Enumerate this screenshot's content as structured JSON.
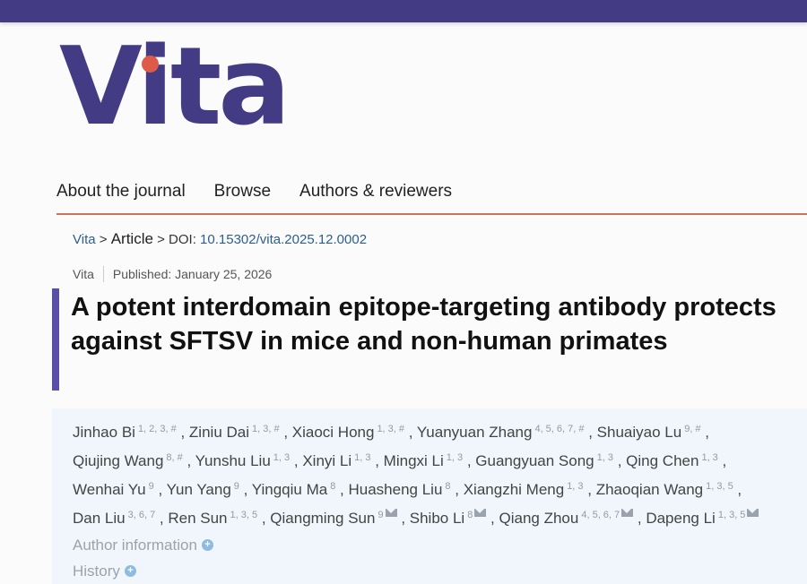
{
  "logo": "Vita",
  "nav": [
    "About the journal",
    "Browse",
    "Authors & reviewers"
  ],
  "breadcrumb": {
    "home": "Vita",
    "sep": ">",
    "article": "Article",
    "doi_label": "DOI:",
    "doi": "10.15302/vita.2025.12.0002"
  },
  "meta": {
    "journal": "Vita",
    "published": "Published: January 25, 2026"
  },
  "title": "A potent interdomain epitope-targeting antibody protects against SFTSV in mice and non-human primates",
  "authors": [
    [
      {
        "n": "Jinhao Bi",
        "s": "1, 2, 3, #"
      },
      {
        "n": "Ziniu Dai",
        "s": "1, 3, #"
      },
      {
        "n": "Xiaoci Hong",
        "s": "1, 3, #"
      },
      {
        "n": "Yuanyuan Zhang",
        "s": "4, 5, 6, 7, #"
      },
      {
        "n": "Shuaiyao Lu",
        "s": "9, #"
      }
    ],
    [
      {
        "n": "Qiujing Wang",
        "s": "8, #"
      },
      {
        "n": "Yunshu Liu",
        "s": "1, 3"
      },
      {
        "n": "Xinyi Li",
        "s": "1, 3"
      },
      {
        "n": "Mingxi Li",
        "s": "1, 3"
      },
      {
        "n": "Guangyuan Song",
        "s": "1, 3"
      },
      {
        "n": "Qing Chen",
        "s": "1, 3"
      }
    ],
    [
      {
        "n": "Wenhai Yu",
        "s": "9"
      },
      {
        "n": "Yun Yang",
        "s": "9"
      },
      {
        "n": "Yingqiu Ma",
        "s": "8"
      },
      {
        "n": "Huasheng Liu",
        "s": "8"
      },
      {
        "n": "Xiangzhi Meng",
        "s": "1, 3"
      },
      {
        "n": "Zhaoqian Wang",
        "s": "1, 3, 5"
      }
    ],
    [
      {
        "n": "Dan Liu",
        "s": "3, 6, 7"
      },
      {
        "n": "Ren Sun",
        "s": "1, 3, 5"
      },
      {
        "n": "Qiangming Sun",
        "s": "9",
        "m": true
      },
      {
        "n": "Shibo Li",
        "s": "8",
        "m": true
      },
      {
        "n": "Qiang Zhou",
        "s": "4, 5, 6, 7",
        "m": true
      },
      {
        "n": "Dapeng Li",
        "s": "1, 3, 5",
        "m": true
      }
    ]
  ],
  "author_info": "Author information",
  "history": "History",
  "colors": {
    "brand": "#433c85",
    "accent": "#dd5a48",
    "link": "#2d5f8a"
  }
}
